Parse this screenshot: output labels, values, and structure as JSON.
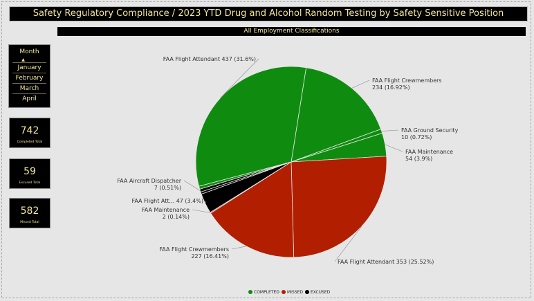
{
  "header": {
    "title": "Safety Regulatory Compliance / 2023 YTD Drug and Alcohol Random Testing by Safety Sensitive Position",
    "subtitle": "All Employment Classifications"
  },
  "month_slicer": {
    "header": "Month",
    "items": [
      "January",
      "February",
      "March",
      "April"
    ]
  },
  "kpis": [
    {
      "value": "742",
      "label": "Completed Total"
    },
    {
      "value": "59",
      "label": "Excused Total"
    },
    {
      "value": "582",
      "label": "Missed Total"
    }
  ],
  "colors": {
    "completed": "#0f8c0f",
    "missed": "#b21f00",
    "excused": "#000000",
    "accent_text": "#f2e89a"
  },
  "chart_data": {
    "type": "pie",
    "title": "",
    "series_legend": [
      {
        "name": "COMPLETED",
        "color": "#0f8c0f"
      },
      {
        "name": "MISSED",
        "color": "#b21f00"
      },
      {
        "name": "EXCUSED",
        "color": "#000000"
      }
    ],
    "legend_position": "bottom-center",
    "slices": [
      {
        "group": "COMPLETED",
        "name": "FAA Flight Crewmembers",
        "value": 234,
        "label_line1": "FAA Flight Crewmembers",
        "label_line2": "234 (16.92%)"
      },
      {
        "group": "COMPLETED",
        "name": "FAA Ground Security",
        "value": 10,
        "label_line1": "FAA Ground Security",
        "label_line2": "10 (0.72%)"
      },
      {
        "group": "COMPLETED",
        "name": "FAA Maintenance",
        "value": 54,
        "label_line1": "FAA Maintenance",
        "label_line2": "54 (3.9%)"
      },
      {
        "group": "MISSED",
        "name": "FAA Flight Attendant",
        "value": 353,
        "label_line1": "FAA Flight Attendant 353 (25.52%)",
        "label_line2": ""
      },
      {
        "group": "MISSED",
        "name": "FAA Flight Crewmembers",
        "value": 227,
        "label_line1": "FAA Flight Crewmembers",
        "label_line2": "227 (16.41%)"
      },
      {
        "group": "MISSED",
        "name": "FAA Maintenance",
        "value": 2,
        "label_line1": "FAA Maintenance",
        "label_line2": "2 (0.14%)"
      },
      {
        "group": "EXCUSED",
        "name": "FAA Flight Attendant",
        "value": 47,
        "label_line1": "FAA Flight Att... 47 (3.4%)",
        "label_line2": ""
      },
      {
        "group": "EXCUSED",
        "name": "FAA Flight Crewmembers",
        "value": 5,
        "label_line1": "",
        "label_line2": ""
      },
      {
        "group": "EXCUSED",
        "name": "FAA Aircraft Dispatcher",
        "value": 7,
        "label_line1": "FAA Aircraft Dispatcher",
        "label_line2": "7 (0.51%)"
      },
      {
        "group": "COMPLETED",
        "name": "FAA Aircraft Dispatcher",
        "value": 7,
        "label_line1": "",
        "label_line2": ""
      },
      {
        "group": "COMPLETED",
        "name": "FAA Flight Attendant",
        "value": 437,
        "label_line1": "FAA Flight Attendant 437 (31.6%)",
        "label_line2": ""
      }
    ]
  }
}
